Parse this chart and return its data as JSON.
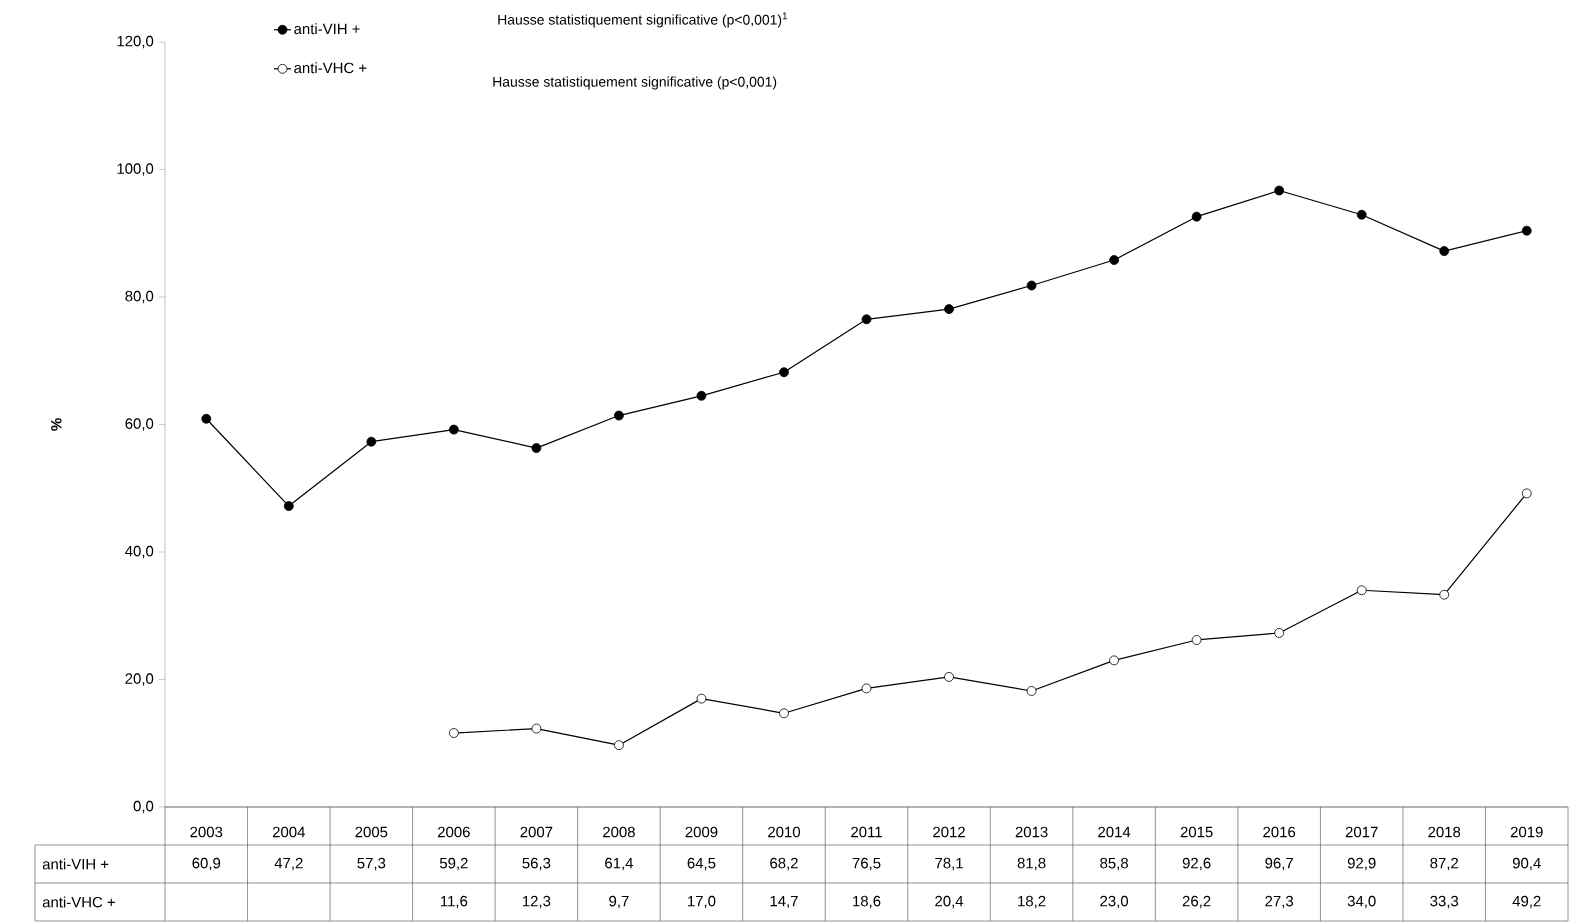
{
  "chart_data": {
    "type": "line",
    "ylabel": "%",
    "categories": [
      "2003",
      "2004",
      "2005",
      "2006",
      "2007",
      "2008",
      "2009",
      "2010",
      "2011",
      "2012",
      "2013",
      "2014",
      "2015",
      "2016",
      "2017",
      "2018",
      "2019"
    ],
    "series": [
      {
        "name": "anti-VIH +",
        "color": "#000000",
        "values": [
          60.9,
          47.2,
          57.3,
          59.2,
          56.3,
          61.4,
          64.5,
          68.2,
          76.5,
          78.1,
          81.8,
          85.8,
          92.6,
          96.7,
          92.9,
          87.2,
          90.4
        ],
        "value_labels": [
          "60,9",
          "47,2",
          "57,3",
          "59,2",
          "56,3",
          "61,4",
          "64,5",
          "68,2",
          "76,5",
          "78,1",
          "81,8",
          "85,8",
          "92,6",
          "96,7",
          "92,9",
          "87,2",
          "90,4"
        ]
      },
      {
        "name": "anti-VHC +",
        "color": "#000000",
        "values": [
          null,
          null,
          null,
          11.6,
          12.3,
          9.7,
          17.0,
          14.7,
          18.6,
          20.4,
          18.2,
          23.0,
          26.2,
          27.3,
          34.0,
          33.3,
          49.2
        ],
        "value_labels": [
          null,
          null,
          null,
          "11,6",
          "12,3",
          "9,7",
          "17,0",
          "14,7",
          "18,6",
          "20,4",
          "18,2",
          "23,0",
          "26,2",
          "27,3",
          "34,0",
          "33,3",
          "49,2"
        ]
      }
    ],
    "annotations": [
      "Hausse statistiquement significative (p<0,001)$^{1}$",
      "Hausse statistiquement significative (p<0,001)"
    ],
    "ylim": [
      0,
      120
    ],
    "yticks": [
      {
        "value": 0,
        "label": "0,0"
      },
      {
        "value": 20,
        "label": "20,0"
      },
      {
        "value": 40,
        "label": "40,0"
      },
      {
        "value": 60,
        "label": "60,0"
      },
      {
        "value": 80,
        "label": "80,0"
      },
      {
        "value": 100,
        "label": "100,0"
      },
      {
        "value": 120,
        "label": "120,0"
      }
    ],
    "marker": "circle",
    "line_style": "solid",
    "legend": "top left",
    "grid": false
  }
}
